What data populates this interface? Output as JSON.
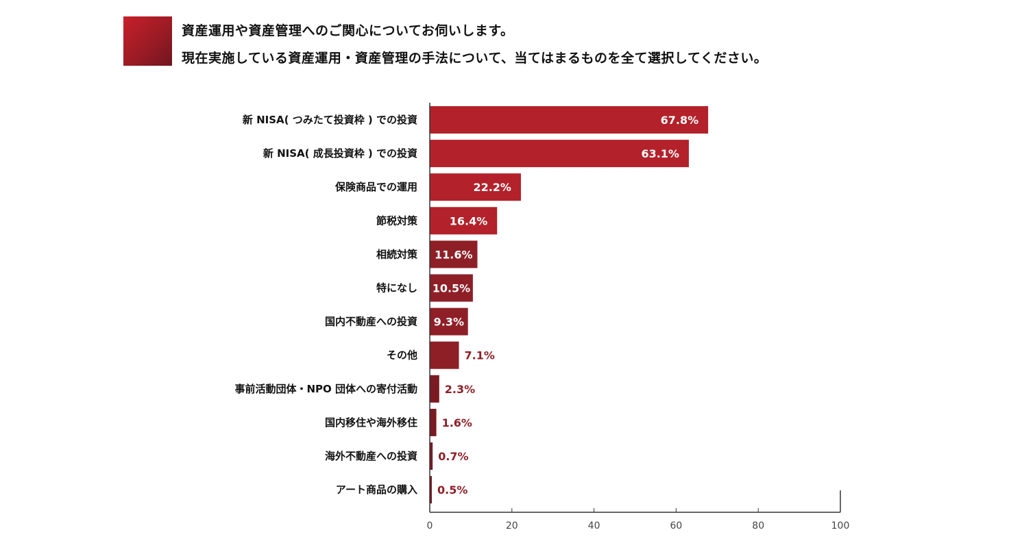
{
  "header": {
    "question_line1": "資産運用や資産管理へのご関心についてお伺いします。",
    "question_line2": "現在実施している資産運用・資産管理の手法について、当てはまるものを全て選択してください。"
  },
  "chart_data": {
    "type": "bar",
    "orientation": "horizontal",
    "categories": [
      "新 NISA( つみたて投資枠 ) での投資",
      "新 NISA( 成長投資枠 ) での投資",
      "保険商品での運用",
      "節税対策",
      "相続対策",
      "特になし",
      "国内不動産への投資",
      "その他",
      "事前活動団体・NPO 団体への寄付活動",
      "国内移住や海外移住",
      "海外不動産への投資",
      "アート商品の購入"
    ],
    "values": [
      67.8,
      63.1,
      22.2,
      16.4,
      11.6,
      10.5,
      9.3,
      7.1,
      2.3,
      1.6,
      0.7,
      0.5
    ],
    "value_labels": [
      "67.8%",
      "63.1%",
      "22.2%",
      "16.4%",
      "11.6%",
      "10.5%",
      "9.3%",
      "7.1%",
      "2.3%",
      "1.6%",
      "0.7%",
      "0.5%"
    ],
    "bar_colors": [
      "#b3212a",
      "#b3212a",
      "#b3212a",
      "#b3212a",
      "#8e1f27",
      "#8e1f27",
      "#8e1f27",
      "#8e1f27",
      "#7a1a22",
      "#7a1a22",
      "#7a1a22",
      "#7a1a22"
    ],
    "label_color_outside": "#8e1f27",
    "xlim": [
      0,
      100
    ],
    "xticks": [
      "0",
      "20",
      "40",
      "60",
      "80",
      "100"
    ],
    "grid": false
  }
}
